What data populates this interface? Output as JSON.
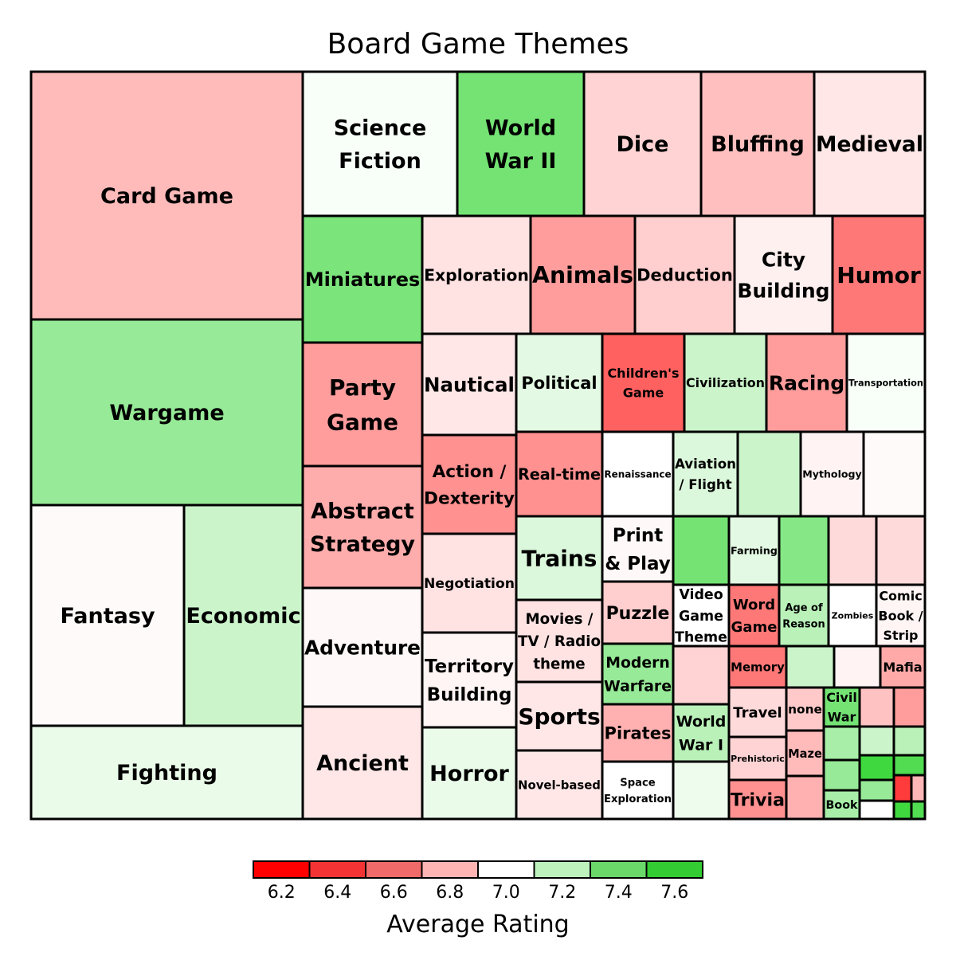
{
  "chart_data": {
    "type": "treemap",
    "title": "Board Game Themes",
    "color_scale": {
      "title": "Average Rating",
      "breaks": [
        6.1,
        6.3,
        6.5,
        6.7,
        6.9,
        7.1,
        7.3,
        7.5,
        7.7
      ],
      "colors": [
        "#ff0000",
        "#f43434",
        "#f06a6a",
        "#ffb4b4",
        "#ffffff",
        "#bdf2bd",
        "#6ad96a",
        "#33cc33"
      ],
      "tick_labels": [
        "6.2",
        "6.4",
        "6.6",
        "6.8",
        "7.0",
        "7.2",
        "7.4",
        "7.6"
      ],
      "low_color": "#ff3b3b",
      "mid_color": "#ffffff",
      "high_color": "#2ed52e",
      "low_value": 6.2,
      "mid_value": 7.0,
      "high_value": 7.6
    },
    "cells": [
      {
        "label": "Card Game",
        "rating": 6.72
      },
      {
        "label": "Wargame",
        "rating": 7.3
      },
      {
        "label": "Fantasy",
        "rating": 6.98
      },
      {
        "label": "Economic",
        "rating": 7.15
      },
      {
        "label": "Fighting",
        "rating": 7.06
      },
      {
        "label": "Science Fiction",
        "rating": 7.02
      },
      {
        "label": "World War II",
        "rating": 7.4
      },
      {
        "label": "Dice",
        "rating": 6.82
      },
      {
        "label": "Bluffing",
        "rating": 6.74
      },
      {
        "label": "Medieval",
        "rating": 6.9
      },
      {
        "label": "Miniatures",
        "rating": 7.38
      },
      {
        "label": "Exploration",
        "rating": 6.88
      },
      {
        "label": "Animals",
        "rating": 6.6
      },
      {
        "label": "Deduction",
        "rating": 6.8
      },
      {
        "label": "City Building",
        "rating": 6.94
      },
      {
        "label": "Humor",
        "rating": 6.45
      },
      {
        "label": "Party Game",
        "rating": 6.6
      },
      {
        "label": "Abstract Strategy",
        "rating": 6.66
      },
      {
        "label": "Adventure",
        "rating": 6.97
      },
      {
        "label": "Ancient",
        "rating": 6.9
      },
      {
        "label": "Nautical",
        "rating": 6.9
      },
      {
        "label": "Action / Dexterity",
        "rating": 6.55
      },
      {
        "label": "Negotiation",
        "rating": 6.88
      },
      {
        "label": "Territory Building",
        "rating": 6.96
      },
      {
        "label": "Horror",
        "rating": 7.06
      },
      {
        "label": "Political",
        "rating": 7.08
      },
      {
        "label": "Children's Game",
        "rating": 6.35
      },
      {
        "label": "Civilization",
        "rating": 7.15
      },
      {
        "label": "Racing",
        "rating": 6.6
      },
      {
        "label": "Transportation",
        "rating": 7.02
      },
      {
        "label": "Real-time",
        "rating": 6.55
      },
      {
        "label": "Renaissance",
        "rating": 7.0
      },
      {
        "label": "Aviation / Flight",
        "rating": 7.1
      },
      {
        "label": "",
        "rating": 7.15
      },
      {
        "label": "Mythology",
        "rating": 6.95
      },
      {
        "label": "",
        "rating": 6.98
      },
      {
        "label": "Trains",
        "rating": 7.1
      },
      {
        "label": "Print & Play",
        "rating": 6.97
      },
      {
        "label": "",
        "rating": 7.4
      },
      {
        "label": "Farming",
        "rating": 7.08
      },
      {
        "label": "",
        "rating": 7.35
      },
      {
        "label": "",
        "rating": 6.85
      },
      {
        "label": "",
        "rating": 6.85
      },
      {
        "label": "Movies / TV / Radio theme",
        "rating": 6.88
      },
      {
        "label": "Puzzle",
        "rating": 6.8
      },
      {
        "label": "Video Game Theme",
        "rating": 7.0
      },
      {
        "label": "Word Game",
        "rating": 6.45
      },
      {
        "label": "Age of Reason",
        "rating": 7.2
      },
      {
        "label": "Zombies",
        "rating": 7.0
      },
      {
        "label": "Comic Book / Strip",
        "rating": 6.96
      },
      {
        "label": "Modern Warfare",
        "rating": 7.3
      },
      {
        "label": "",
        "rating": 6.82
      },
      {
        "label": "Memory",
        "rating": 6.45
      },
      {
        "label": "",
        "rating": 7.15
      },
      {
        "label": "",
        "rating": 6.95
      },
      {
        "label": "Mafia",
        "rating": 6.65
      },
      {
        "label": "Sports",
        "rating": 6.9
      },
      {
        "label": "Pirates",
        "rating": 6.68
      },
      {
        "label": "World War I",
        "rating": 7.2
      },
      {
        "label": "Travel",
        "rating": 6.85
      },
      {
        "label": "none",
        "rating": 6.78
      },
      {
        "label": "Civil War",
        "rating": 7.4
      },
      {
        "label": "",
        "rating": 6.75
      },
      {
        "label": "",
        "rating": 6.6
      },
      {
        "label": "Prehistoric",
        "rating": 6.82
      },
      {
        "label": "Maze",
        "rating": 6.72
      },
      {
        "label": "",
        "rating": 7.25
      },
      {
        "label": "",
        "rating": 7.15
      },
      {
        "label": "",
        "rating": 7.2
      },
      {
        "label": "Novel-based",
        "rating": 6.9
      },
      {
        "label": "Space Exploration",
        "rating": 7.0
      },
      {
        "label": "",
        "rating": 7.05
      },
      {
        "label": "Trivia",
        "rating": 6.55
      },
      {
        "label": "",
        "rating": 6.68
      },
      {
        "label": "",
        "rating": 7.3
      },
      {
        "label": "",
        "rating": 7.55
      },
      {
        "label": "",
        "rating": 7.5
      },
      {
        "label": "",
        "rating": 7.3
      },
      {
        "label": "",
        "rating": 6.2
      },
      {
        "label": "",
        "rating": 6.7
      },
      {
        "label": "Book",
        "rating": 7.25
      },
      {
        "label": "",
        "rating": 7.0
      },
      {
        "label": "",
        "rating": 7.55
      },
      {
        "label": "",
        "rating": 7.5
      }
    ]
  }
}
